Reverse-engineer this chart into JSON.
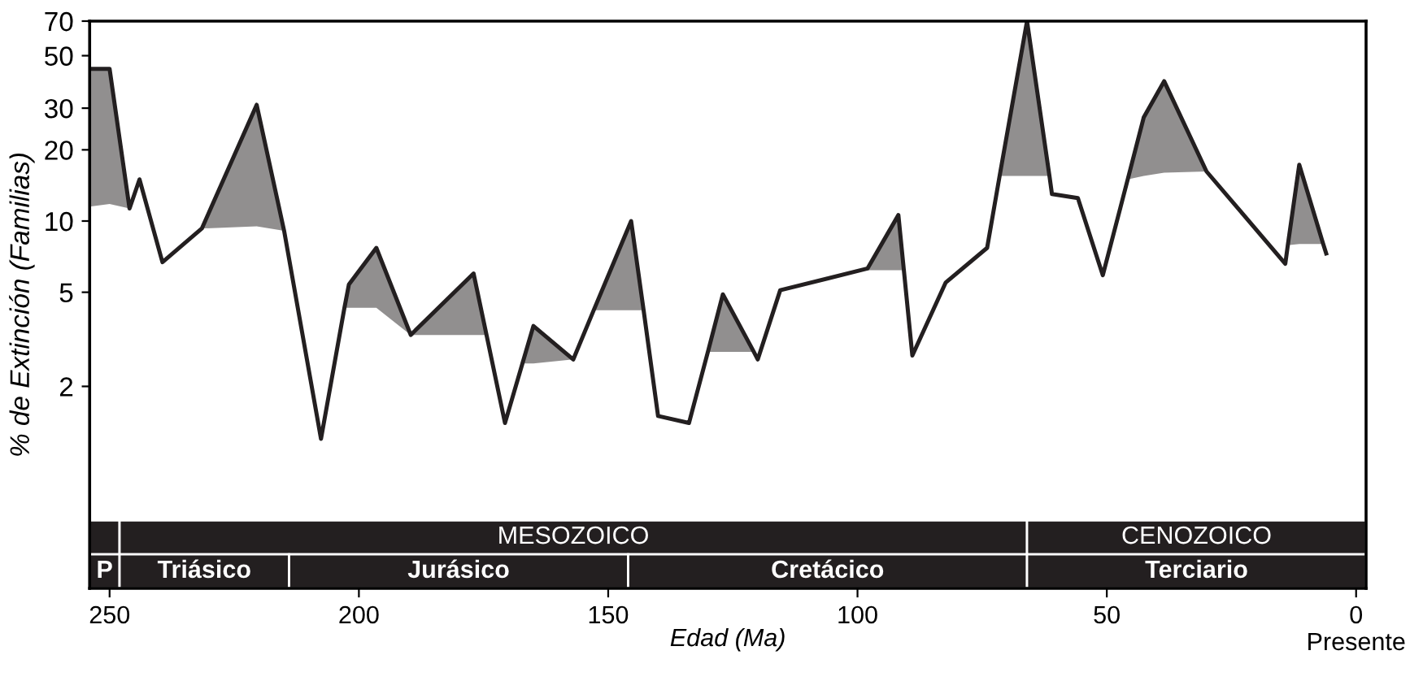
{
  "chart_data": {
    "type": "line",
    "xlabel": "Edad (Ma)",
    "ylabel": "% de Extinción (Familias)",
    "x": [
      254,
      250,
      246,
      244,
      239.4,
      231.5,
      220.5,
      215,
      207.6,
      202.9,
      202,
      196.5,
      189.6,
      177,
      174.4,
      170.7,
      167.2,
      165,
      157,
      152.9,
      145.4,
      142.9,
      140,
      133.8,
      130,
      127,
      120.8,
      120,
      115.5,
      98,
      91.8,
      90.7,
      89,
      82.3,
      74,
      71.5,
      66,
      61.5,
      61,
      55.8,
      50.8,
      45.8,
      42.6,
      38.5,
      30,
      14.2,
      13.7,
      11.4,
      6.6,
      6
    ],
    "series": [
      {
        "color": "#231f20",
        "values": [
          44,
          44,
          11.3,
          15,
          6.7,
          9.3,
          31,
          9.1,
          1.2,
          4.3,
          5.4,
          7.7,
          3.3,
          6,
          3.3,
          1.4,
          2.5,
          3.6,
          2.6,
          4.2,
          10,
          4.2,
          1.5,
          1.4,
          2.8,
          4.9,
          2.8,
          2.6,
          5.1,
          6.3,
          10.6,
          6.2,
          2.7,
          5.5,
          7.7,
          15.5,
          70,
          15.5,
          13,
          12.5,
          5.9,
          15,
          27.4,
          39,
          16.2,
          6.6,
          7.9,
          17.3,
          8,
          7.3
        ],
        "upper": [
          44,
          44,
          11.3,
          null,
          null,
          9.3,
          31,
          9.1,
          null,
          4.3,
          5.4,
          7.7,
          3.3,
          6,
          3.3,
          null,
          2.5,
          3.6,
          2.6,
          4.2,
          10,
          4.2,
          null,
          null,
          2.8,
          4.9,
          2.8,
          null,
          null,
          6.3,
          10.6,
          6.2,
          null,
          null,
          null,
          15.5,
          70,
          15.5,
          null,
          null,
          null,
          15,
          27.4,
          39,
          16.2,
          null,
          7.9,
          17.3,
          8,
          null
        ],
        "lower": [
          11.5,
          11.8,
          11.3,
          null,
          null,
          9.3,
          9.5,
          9.1,
          null,
          4.3,
          4.3,
          4.3,
          3.3,
          3.3,
          3.3,
          null,
          2.5,
          2.5,
          2.6,
          4.2,
          4.2,
          4.2,
          null,
          null,
          2.8,
          2.8,
          2.8,
          null,
          null,
          6.2,
          6.2,
          6.2,
          null,
          null,
          null,
          15.5,
          15.5,
          15.5,
          null,
          null,
          null,
          15,
          15.5,
          16,
          16.2,
          null,
          7.9,
          8,
          8,
          null
        ]
      }
    ],
    "log": "y",
    "xlim": [
      254,
      -2
    ],
    "ylim": [
      0.28,
      70
    ],
    "xticks": [
      250,
      200,
      150,
      100,
      50,
      {
        "value": 0,
        "label": "0\nPresente"
      }
    ],
    "yticks": [
      2,
      5,
      10,
      20,
      30,
      50,
      70
    ],
    "marker": "none",
    "line_style": "solid",
    "grid": false,
    "bands": [
      {
        "axis": "x",
        "from": 254,
        "to": 248,
        "label": null,
        "color": "#231f20"
      },
      {
        "axis": "x",
        "from": 248,
        "to": 66,
        "label": "MESOZOICO",
        "color": "#231f20"
      },
      {
        "axis": "x",
        "from": 66,
        "to": -2,
        "label": "CENOZOICO",
        "color": "#231f20"
      },
      {
        "axis": "x",
        "from": 254,
        "to": 248,
        "label": "P",
        "color": "#231f20"
      },
      {
        "axis": "x",
        "from": 248,
        "to": 214,
        "label": "Triásico",
        "color": "#231f20"
      },
      {
        "axis": "x",
        "from": 214,
        "to": 146,
        "label": "Jurásico",
        "color": "#231f20"
      },
      {
        "axis": "x",
        "from": 146,
        "to": 66,
        "label": "Cretácico",
        "color": "#231f20"
      },
      {
        "axis": "x",
        "from": 66,
        "to": -2,
        "label": "Terciario",
        "color": "#231f20"
      }
    ]
  }
}
